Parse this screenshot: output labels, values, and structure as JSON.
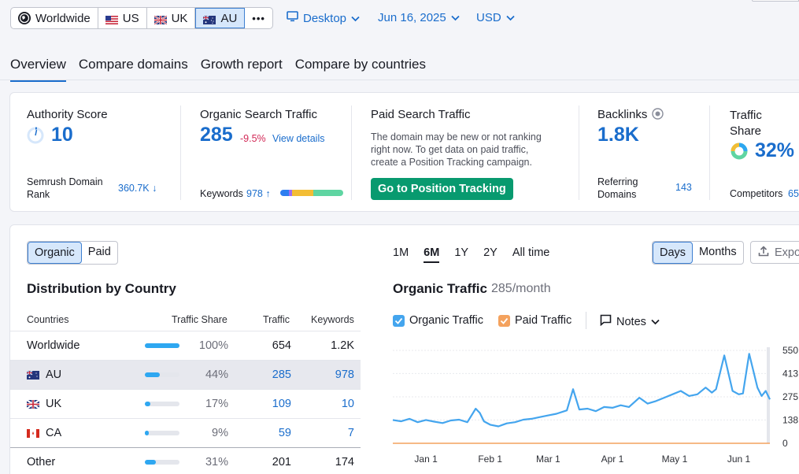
{
  "databases": [
    {
      "label": "Worldwide",
      "icon": "globe-icon",
      "active": false
    },
    {
      "label": "US",
      "icon": "us-flag-icon",
      "active": false
    },
    {
      "label": "UK",
      "icon": "uk-flag-icon",
      "active": false
    },
    {
      "label": "AU",
      "icon": "au-flag-icon",
      "active": true
    }
  ],
  "more_label": "•••",
  "device": "Desktop",
  "date": "Jun 16, 2025",
  "currency": "USD",
  "tabs": [
    "Overview",
    "Compare domains",
    "Growth report",
    "Compare by countries"
  ],
  "metrics": {
    "authority": {
      "title": "Authority Score",
      "value": "10",
      "rank_label": "Semrush Domain Rank",
      "rank_value": "360.7K ↓"
    },
    "organic": {
      "title": "Organic Search Traffic",
      "value": "285",
      "change": "-9.5%",
      "link": "View details",
      "kw_label": "Keywords",
      "kw_value": "978 ↑"
    },
    "paid": {
      "title": "Paid Search Traffic",
      "text": "The domain may be new or not ranking right now. To get data on paid traffic, create a Position Tracking campaign.",
      "button": "Go to Position Tracking"
    },
    "backlinks": {
      "title": "Backlinks",
      "value": "1.8K",
      "ref_label": "Referring Domains",
      "ref_value": "143"
    },
    "share": {
      "title": "Traffic Share",
      "value": "32%",
      "comp_label": "Competitors",
      "comp_value": "65"
    }
  },
  "toggle": {
    "organic": "Organic",
    "paid": "Paid"
  },
  "distribution": {
    "title": "Distribution by Country",
    "headers": [
      "Countries",
      "Traffic Share",
      "Traffic",
      "Keywords"
    ],
    "rows": [
      {
        "country": "Worldwide",
        "flag": "",
        "share": "100%",
        "share_fraction": 1.0,
        "traffic": "654",
        "keywords": "1.2K",
        "link": false,
        "highlight": false
      },
      {
        "country": "AU",
        "flag": "au-flag-icon",
        "share": "44%",
        "share_fraction": 0.44,
        "traffic": "285",
        "keywords": "978",
        "link": true,
        "highlight": true
      },
      {
        "country": "UK",
        "flag": "uk-flag-icon",
        "share": "17%",
        "share_fraction": 0.17,
        "traffic": "109",
        "keywords": "10",
        "link": true,
        "highlight": false
      },
      {
        "country": "CA",
        "flag": "ca-flag-icon",
        "share": "9%",
        "share_fraction": 0.09,
        "traffic": "59",
        "keywords": "7",
        "link": true,
        "highlight": false
      },
      {
        "country": "Other",
        "flag": "",
        "share": "31%",
        "share_fraction": 0.31,
        "traffic": "201",
        "keywords": "174",
        "link": false,
        "highlight": false
      }
    ]
  },
  "periods": [
    "1M",
    "6M",
    "1Y",
    "2Y",
    "All time"
  ],
  "active_period": "6M",
  "granularity": {
    "days": "Days",
    "months": "Months"
  },
  "export_label": "Expo",
  "traffic_chart_header": {
    "title": "Organic Traffic",
    "subtitle": "285/month"
  },
  "legend": {
    "organic": "Organic Traffic",
    "paid": "Paid Traffic",
    "notes": "Notes"
  },
  "colors": {
    "accent": "#1a6dcc",
    "organic_line": "#44a5ee",
    "paid_line": "#f4a25e",
    "green": "#089a6f",
    "negative": "#d22856"
  },
  "chart_data": {
    "type": "line",
    "title": "",
    "y_ticks": [
      "550",
      "413",
      "275",
      "138",
      "0"
    ],
    "ylim": [
      0,
      550
    ],
    "x_ticks": [
      "Jan 1",
      "Feb 1",
      "Mar 1",
      "Apr 1",
      "May 1",
      "Jun 1"
    ],
    "xlim": [
      "2024-12-16",
      "2025-06-16"
    ],
    "grid": true,
    "series": [
      {
        "name": "Organic Traffic",
        "x": [
          "2024-12-16",
          "2024-12-20",
          "2024-12-24",
          "2024-12-28",
          "2025-01-01",
          "2025-01-05",
          "2025-01-09",
          "2025-01-13",
          "2025-01-17",
          "2025-01-21",
          "2025-01-25",
          "2025-01-27",
          "2025-01-29",
          "2025-02-01",
          "2025-02-05",
          "2025-02-09",
          "2025-02-13",
          "2025-02-17",
          "2025-02-21",
          "2025-02-25",
          "2025-03-01",
          "2025-03-05",
          "2025-03-10",
          "2025-03-13",
          "2025-03-16",
          "2025-03-20",
          "2025-03-24",
          "2025-03-28",
          "2025-04-01",
          "2025-04-05",
          "2025-04-09",
          "2025-04-14",
          "2025-04-18",
          "2025-04-22",
          "2025-04-26",
          "2025-04-30",
          "2025-05-04",
          "2025-05-08",
          "2025-05-12",
          "2025-05-16",
          "2025-05-19",
          "2025-05-21",
          "2025-05-25",
          "2025-05-29",
          "2025-06-01",
          "2025-06-03",
          "2025-06-06",
          "2025-06-10",
          "2025-06-12",
          "2025-06-14",
          "2025-06-16"
        ],
        "values": [
          138,
          130,
          145,
          125,
          138,
          128,
          120,
          135,
          140,
          125,
          205,
          180,
          130,
          110,
          100,
          118,
          125,
          140,
          145,
          155,
          165,
          175,
          195,
          320,
          200,
          205,
          190,
          215,
          210,
          225,
          215,
          270,
          235,
          250,
          270,
          290,
          310,
          280,
          290,
          330,
          300,
          320,
          520,
          310,
          290,
          295,
          530,
          330,
          280,
          310,
          260
        ]
      },
      {
        "name": "Paid Traffic",
        "x": [
          "2024-12-16",
          "2025-06-16"
        ],
        "values": [
          0,
          0
        ]
      }
    ]
  }
}
